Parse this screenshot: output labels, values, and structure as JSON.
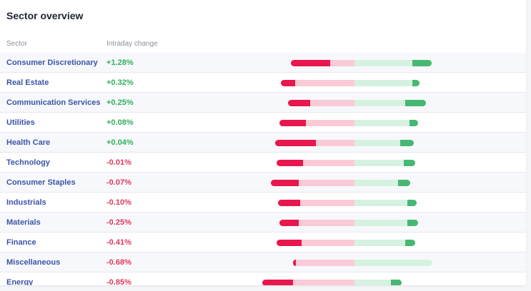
{
  "card": {
    "title": "Sector overview",
    "headers": {
      "sector": "Sector",
      "change": "Intraday change"
    }
  },
  "colors": {
    "decliners_strong": "#e8174d",
    "decliners_light": "#fbcad7",
    "advancers_strong": "#46b873",
    "advancers_light": "#d5f2e0",
    "positive_text": "#2fae5b",
    "negative_text": "#e0385c",
    "sector_link": "#3a55a6"
  },
  "sectors": [
    {
      "name": "Consumer Discretionary",
      "change": "+1.28%",
      "direction": "pos",
      "bar": {
        "red_outer": 0.368,
        "red_strong": 0.228,
        "green_outer": 0.447,
        "green_strong": 0.112
      }
    },
    {
      "name": "Real Estate",
      "change": "+0.32%",
      "direction": "pos",
      "bar": {
        "red_outer": 0.426,
        "red_strong": 0.081,
        "green_outer": 0.374,
        "green_strong": 0.041
      }
    },
    {
      "name": "Communication Services",
      "change": "+0.25%",
      "direction": "pos",
      "bar": {
        "red_outer": 0.384,
        "red_strong": 0.128,
        "green_outer": 0.415,
        "green_strong": 0.12
      }
    },
    {
      "name": "Utilities",
      "change": "+0.08%",
      "direction": "pos",
      "bar": {
        "red_outer": 0.434,
        "red_strong": 0.151,
        "green_outer": 0.368,
        "green_strong": 0.048
      }
    },
    {
      "name": "Health Care",
      "change": "+0.04%",
      "direction": "pos",
      "bar": {
        "red_outer": 0.459,
        "red_strong": 0.234,
        "green_outer": 0.344,
        "green_strong": 0.079
      }
    },
    {
      "name": "Technology",
      "change": "-0.01%",
      "direction": "neg",
      "bar": {
        "red_outer": 0.45,
        "red_strong": 0.153,
        "green_outer": 0.351,
        "green_strong": 0.066
      }
    },
    {
      "name": "Consumer Staples",
      "change": "-0.07%",
      "direction": "neg",
      "bar": {
        "red_outer": 0.483,
        "red_strong": 0.161,
        "green_outer": 0.322,
        "green_strong": 0.072
      }
    },
    {
      "name": "Industrials",
      "change": "-0.10%",
      "direction": "neg",
      "bar": {
        "red_outer": 0.442,
        "red_strong": 0.13,
        "green_outer": 0.36,
        "green_strong": 0.056
      }
    },
    {
      "name": "Materials",
      "change": "-0.25%",
      "direction": "neg",
      "bar": {
        "red_outer": 0.434,
        "red_strong": 0.113,
        "green_outer": 0.368,
        "green_strong": 0.064
      }
    },
    {
      "name": "Finance",
      "change": "-0.41%",
      "direction": "neg",
      "bar": {
        "red_outer": 0.45,
        "red_strong": 0.143,
        "green_outer": 0.351,
        "green_strong": 0.056
      }
    },
    {
      "name": "Miscellaneous",
      "change": "-0.68%",
      "direction": "neg",
      "bar": {
        "red_outer": 0.355,
        "red_strong": 0.017,
        "green_outer": 0.449,
        "green_strong": 0.0
      }
    },
    {
      "name": "Energy",
      "change": "-0.85%",
      "direction": "neg",
      "bar": {
        "red_outer": 0.533,
        "red_strong": 0.177,
        "green_outer": 0.273,
        "green_strong": 0.062
      }
    }
  ]
}
